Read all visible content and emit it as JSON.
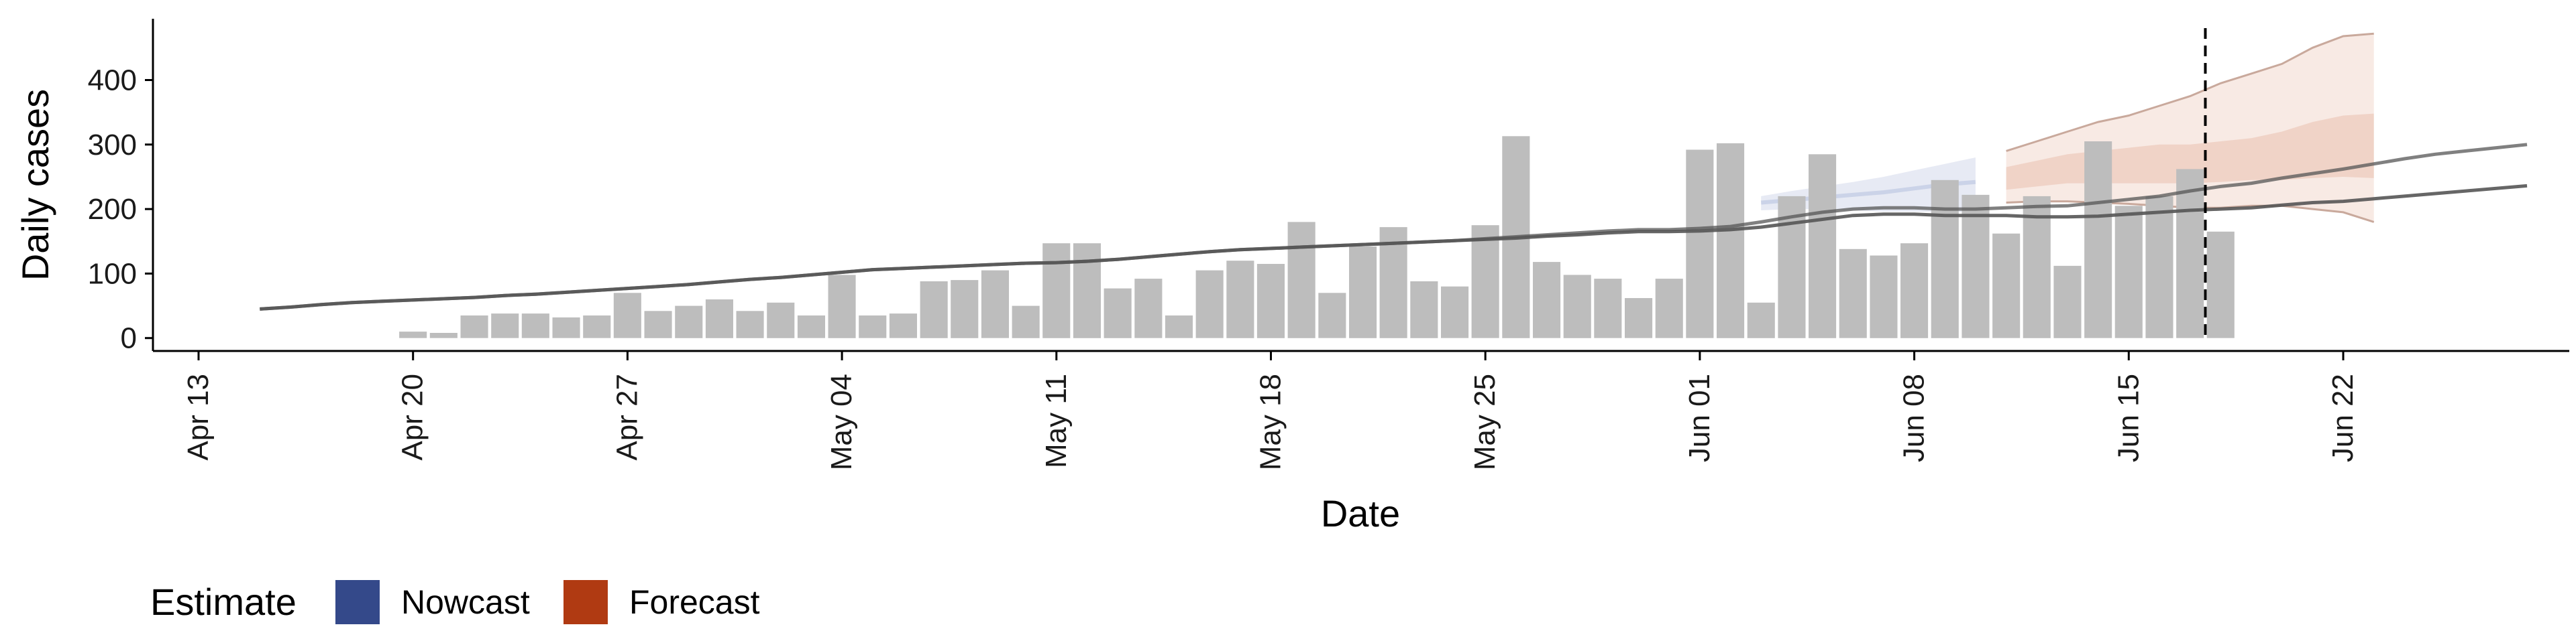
{
  "chart_data": {
    "type": "bar",
    "xlabel": "Date",
    "ylabel": "Daily cases",
    "ylim": [
      -20,
      495
    ],
    "yticks": [
      0,
      100,
      200,
      300,
      400
    ],
    "xlim": [
      "2020-04-13",
      "2020-06-25"
    ],
    "xticks": [
      "Apr 13",
      "Apr 20",
      "Apr 27",
      "May 04",
      "May 11",
      "May 18",
      "May 25",
      "Jun 01",
      "Jun 08",
      "Jun 15",
      "Jun 22"
    ],
    "xtick_dates": [
      "2020-04-13",
      "2020-04-20",
      "2020-04-27",
      "2020-05-04",
      "2020-05-11",
      "2020-05-18",
      "2020-05-25",
      "2020-06-01",
      "2020-06-08",
      "2020-06-15",
      "2020-06-22"
    ],
    "estimate_date": "2020-06-18",
    "grid": false,
    "legend_position": "bottom-left",
    "legend": {
      "title": "Estimate",
      "items": [
        {
          "label": "Nowcast",
          "color": "#34498a"
        },
        {
          "label": "Forecast",
          "color": "#b03a12"
        }
      ]
    },
    "colors": {
      "bars": "#bdbdbd",
      "trend_line": "#555555",
      "nowcast_band": "#b9c3e0",
      "forecast_band": "#e2aa92",
      "estimate_line": "#000000"
    },
    "reported_cases": {
      "start_date": "2020-04-20",
      "values": [
        10,
        8,
        35,
        38,
        38,
        32,
        35,
        70,
        42,
        50,
        60,
        42,
        55,
        35,
        98,
        35,
        38,
        88,
        90,
        105,
        50,
        147,
        147,
        77,
        92,
        35,
        105,
        120,
        115,
        180,
        70,
        142,
        172,
        88,
        80,
        175,
        313,
        118,
        98,
        92,
        62,
        92,
        292,
        302,
        55,
        220,
        285,
        138,
        128,
        147,
        245,
        222,
        162,
        220,
        112,
        305,
        205,
        220,
        262,
        165
      ]
    },
    "trend_median": {
      "start_date": "2020-04-15",
      "values": [
        45,
        48,
        52,
        55,
        57,
        59,
        61,
        63,
        66,
        68,
        71,
        74,
        77,
        80,
        83,
        87,
        91,
        94,
        98,
        102,
        106,
        108,
        110,
        112,
        114,
        116,
        117,
        119,
        122,
        126,
        130,
        134,
        137,
        139,
        141,
        143,
        145,
        147,
        149,
        151,
        153,
        155,
        158,
        160,
        163,
        165,
        165,
        166,
        168,
        172,
        178,
        184,
        190,
        192,
        192,
        190,
        190,
        190,
        188,
        188,
        189,
        192,
        195,
        198,
        200,
        202,
        206,
        210,
        212,
        216,
        220,
        224,
        228,
        232,
        236
      ]
    },
    "trend_upper": {
      "start_date": "2020-04-15",
      "values": [
        45,
        48,
        52,
        55,
        57,
        59,
        61,
        63,
        66,
        68,
        71,
        74,
        77,
        80,
        83,
        87,
        91,
        94,
        98,
        102,
        106,
        108,
        110,
        112,
        114,
        116,
        117,
        119,
        122,
        126,
        130,
        134,
        137,
        139,
        141,
        143,
        145,
        147,
        149,
        151,
        154,
        157,
        160,
        163,
        166,
        168,
        168,
        170,
        173,
        180,
        188,
        195,
        200,
        202,
        202,
        200,
        200,
        202,
        204,
        205,
        210,
        215,
        220,
        228,
        235,
        240,
        248,
        255,
        262,
        270,
        278,
        285,
        290,
        295,
        300
      ]
    },
    "nowcast": {
      "dates": [
        "2020-06-03",
        "2020-06-04",
        "2020-06-05",
        "2020-06-06",
        "2020-06-07",
        "2020-06-08",
        "2020-06-09",
        "2020-06-10"
      ],
      "lower": [
        198,
        200,
        200,
        198,
        196,
        196,
        196,
        195
      ],
      "median": [
        210,
        214,
        218,
        222,
        226,
        232,
        238,
        242
      ],
      "upper": [
        220,
        228,
        235,
        242,
        250,
        260,
        270,
        280
      ]
    },
    "forecast": {
      "dates": [
        "2020-06-11",
        "2020-06-12",
        "2020-06-13",
        "2020-06-14",
        "2020-06-15",
        "2020-06-16",
        "2020-06-17",
        "2020-06-18",
        "2020-06-19",
        "2020-06-20",
        "2020-06-21",
        "2020-06-22",
        "2020-06-23"
      ],
      "outer_lower": [
        210,
        212,
        212,
        210,
        208,
        205,
        202,
        202,
        205,
        205,
        200,
        195,
        180
      ],
      "inner_lower": [
        230,
        235,
        240,
        240,
        240,
        240,
        240,
        242,
        245,
        245,
        248,
        250,
        248
      ],
      "inner_upper": [
        265,
        275,
        285,
        290,
        295,
        300,
        300,
        305,
        310,
        320,
        335,
        345,
        348
      ],
      "outer_upper": [
        290,
        305,
        320,
        335,
        345,
        360,
        375,
        395,
        410,
        425,
        450,
        468,
        472
      ]
    }
  }
}
